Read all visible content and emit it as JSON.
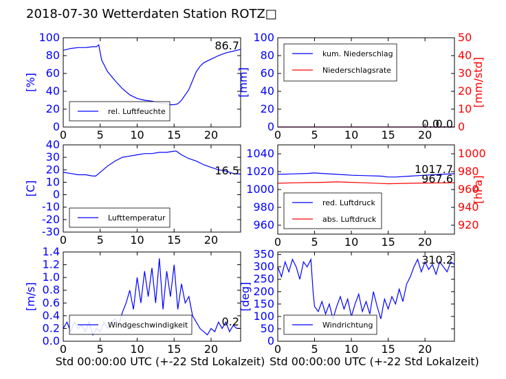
{
  "title": "2018-07-30 Wetterdaten Station ROTZ□",
  "colors": {
    "blue": "#0000ff",
    "red": "#ff0000",
    "axis": "#000000",
    "tick_blue": "#0000ff",
    "tick_red": "#ff0000"
  },
  "chart_data": [
    {
      "id": "humidity",
      "type": "line",
      "xlim": [
        0,
        24
      ],
      "ylim": [
        0,
        100
      ],
      "xticks": [
        0,
        5,
        10,
        15,
        20
      ],
      "yticks": [
        0,
        20,
        40,
        60,
        80,
        100
      ],
      "ylabel": "[%]",
      "legend_placement": "lower-left",
      "current_value": "86.7",
      "series": [
        {
          "name": "rel. Luftfeuchte",
          "color": "#0000ff",
          "x": [
            0,
            1,
            2,
            3,
            4,
            4.5,
            4.8,
            5.2,
            6,
            7,
            8,
            9,
            10,
            11,
            12,
            13,
            14,
            14.5,
            15,
            15.5,
            16,
            17,
            17.5,
            18,
            18.5,
            19,
            20,
            21,
            22,
            23,
            24
          ],
          "y": [
            86,
            88,
            89,
            89,
            90,
            90,
            92,
            75,
            62,
            52,
            43,
            36,
            32,
            30,
            29,
            27,
            26,
            25,
            25,
            26,
            30,
            42,
            52,
            62,
            68,
            72,
            76,
            80,
            83,
            85,
            87
          ]
        }
      ]
    },
    {
      "id": "precipitation",
      "type": "line",
      "xlim": [
        0,
        24
      ],
      "ylim": [
        0,
        100
      ],
      "ylim_right": [
        0,
        50
      ],
      "xticks": [
        0,
        5,
        10,
        15,
        20
      ],
      "yticks": [
        0,
        20,
        40,
        60,
        80,
        100
      ],
      "yticks_right": [
        0,
        10,
        20,
        30,
        40,
        50
      ],
      "ylabel": "[mm]",
      "ylabel_right": "[mm/std]",
      "legend_placement": "top-left",
      "current_value": "0.0",
      "current_value_right": "0.0",
      "series": [
        {
          "name": "kum. Niederschlag",
          "color": "#0000ff",
          "axis": "left",
          "x": [
            0,
            24
          ],
          "y": [
            0,
            0
          ]
        },
        {
          "name": "Niederschlagsrate",
          "color": "#ff0000",
          "axis": "right",
          "x": [
            0,
            24
          ],
          "y": [
            0,
            0
          ]
        }
      ]
    },
    {
      "id": "temperature",
      "type": "line",
      "xlim": [
        0,
        24
      ],
      "ylim": [
        -30,
        40
      ],
      "xticks": [
        0,
        5,
        10,
        15,
        20
      ],
      "yticks": [
        -30,
        -20,
        -10,
        0,
        10,
        20,
        30,
        40
      ],
      "ylabel": "[C]",
      "legend_placement": "lower-left",
      "current_value": "16.5",
      "series": [
        {
          "name": "Lufttemperatur",
          "color": "#0000ff",
          "x": [
            0,
            1,
            2,
            3,
            4,
            4.4,
            5,
            6,
            7,
            8,
            9,
            10,
            11,
            12,
            13,
            14,
            15,
            15.3,
            16,
            17,
            18,
            19,
            20,
            21,
            22,
            23,
            24
          ],
          "y": [
            18,
            17,
            16,
            16,
            15,
            15,
            18,
            23,
            27,
            30,
            31,
            32,
            33,
            33,
            34,
            34,
            35,
            35,
            32,
            29,
            27,
            24,
            22,
            20,
            19,
            17,
            16.5
          ]
        }
      ]
    },
    {
      "id": "pressure",
      "type": "line",
      "xlim": [
        0,
        24
      ],
      "ylim": [
        950,
        1050
      ],
      "ylim_right": [
        910,
        1010
      ],
      "xticks": [
        0,
        5,
        10,
        15,
        20
      ],
      "yticks": [
        960,
        980,
        1000,
        1020,
        1040
      ],
      "yticks_right": [
        920,
        940,
        960,
        980,
        1000
      ],
      "ylabel_right": "[hPa]",
      "legend_placement": "lower-left",
      "current_value": "1017.7",
      "current_value_right": "967.6",
      "series": [
        {
          "name": "red. Luftdruck",
          "color": "#0000ff",
          "axis": "left",
          "x": [
            0,
            2,
            4,
            5,
            6,
            8,
            10,
            12,
            14,
            15,
            16,
            18,
            20,
            22,
            24
          ],
          "y": [
            1017,
            1017.5,
            1018,
            1018.5,
            1018,
            1017,
            1016,
            1015.5,
            1015,
            1014,
            1014,
            1015,
            1016,
            1017,
            1017.7
          ]
        },
        {
          "name": "abs. Luftdruck",
          "color": "#ff0000",
          "axis": "right",
          "x": [
            0,
            2,
            4,
            6,
            8,
            10,
            12,
            14,
            15,
            16,
            18,
            20,
            22,
            24
          ],
          "y": [
            967,
            967.5,
            967.8,
            968,
            968.5,
            968,
            967.5,
            966.8,
            966.5,
            966.6,
            967,
            967.2,
            967.4,
            967.6
          ]
        }
      ]
    },
    {
      "id": "windspeed",
      "type": "line",
      "xlim": [
        0,
        24
      ],
      "ylim": [
        0,
        1.4
      ],
      "xticks": [
        0,
        5,
        10,
        15,
        20
      ],
      "yticks": [
        0.0,
        0.2,
        0.4,
        0.6,
        0.8,
        1.0,
        1.2,
        1.4
      ],
      "ylabel": "[m/s]",
      "xlabel": "Std 00:00:00 UTC (+-22 Std Lokalzeit)",
      "legend_placement": "lower-left",
      "current_value": "0.2",
      "series": [
        {
          "name": "Windgeschwindigkeit",
          "color": "#0000ff",
          "x": [
            0,
            0.5,
            1,
            1.5,
            2,
            2.5,
            3,
            3.5,
            4,
            4.5,
            5,
            5.5,
            6,
            6.5,
            7,
            7.5,
            8,
            8.5,
            9,
            9.5,
            10,
            10.5,
            11,
            11.5,
            12,
            12.5,
            13,
            13.5,
            14,
            14.5,
            15,
            15.5,
            16,
            16.5,
            17,
            17.5,
            18,
            18.5,
            19,
            19.5,
            20,
            20.5,
            21,
            21.5,
            22,
            22.5,
            23,
            23.5,
            24
          ],
          "y": [
            0.2,
            0.3,
            0.15,
            0.3,
            0.2,
            0.25,
            0.15,
            0.3,
            0.1,
            0.2,
            0.15,
            0.3,
            0.2,
            0.3,
            0.35,
            0.25,
            0.45,
            0.6,
            0.8,
            0.5,
            1.0,
            0.6,
            1.1,
            0.7,
            1.15,
            0.6,
            1.3,
            0.5,
            1.1,
            0.7,
            1.2,
            0.5,
            0.9,
            0.6,
            0.7,
            0.4,
            0.3,
            0.2,
            0.15,
            0.1,
            0.2,
            0.15,
            0.3,
            0.2,
            0.3,
            0.15,
            0.25,
            0.2,
            0.2
          ]
        }
      ]
    },
    {
      "id": "winddirection",
      "type": "line",
      "xlim": [
        0,
        24
      ],
      "ylim": [
        0,
        360
      ],
      "xticks": [
        0,
        5,
        10,
        15,
        20
      ],
      "yticks": [
        0,
        50,
        100,
        150,
        200,
        250,
        300,
        350
      ],
      "ylabel": "[deg]",
      "xlabel": "Std 00:00:00 UTC (+-22 Std Lokalzeit)",
      "legend_placement": "lower-left",
      "current_value": "310.2",
      "series": [
        {
          "name": "Windrichtung",
          "color": "#0000ff",
          "x": [
            0,
            0.5,
            1,
            1.5,
            2,
            2.5,
            3,
            3.5,
            4,
            4.5,
            4.8,
            5,
            5.5,
            6,
            6.5,
            7,
            7.5,
            8,
            8.5,
            9,
            9.5,
            10,
            10.5,
            11,
            11.5,
            12,
            12.5,
            13,
            13.5,
            14,
            14.5,
            15,
            15.5,
            16,
            16.5,
            17,
            17.5,
            18,
            18.5,
            19,
            19.5,
            20,
            20.5,
            21,
            21.5,
            22,
            22.5,
            23,
            23.5,
            24
          ],
          "y": [
            300,
            260,
            320,
            280,
            330,
            300,
            250,
            320,
            300,
            330,
            200,
            140,
            120,
            160,
            110,
            150,
            90,
            140,
            180,
            130,
            170,
            100,
            150,
            190,
            120,
            160,
            110,
            200,
            140,
            90,
            170,
            130,
            180,
            150,
            210,
            160,
            230,
            260,
            300,
            330,
            280,
            320,
            290,
            310,
            270,
            320,
            300,
            280,
            320,
            310
          ]
        }
      ]
    }
  ]
}
